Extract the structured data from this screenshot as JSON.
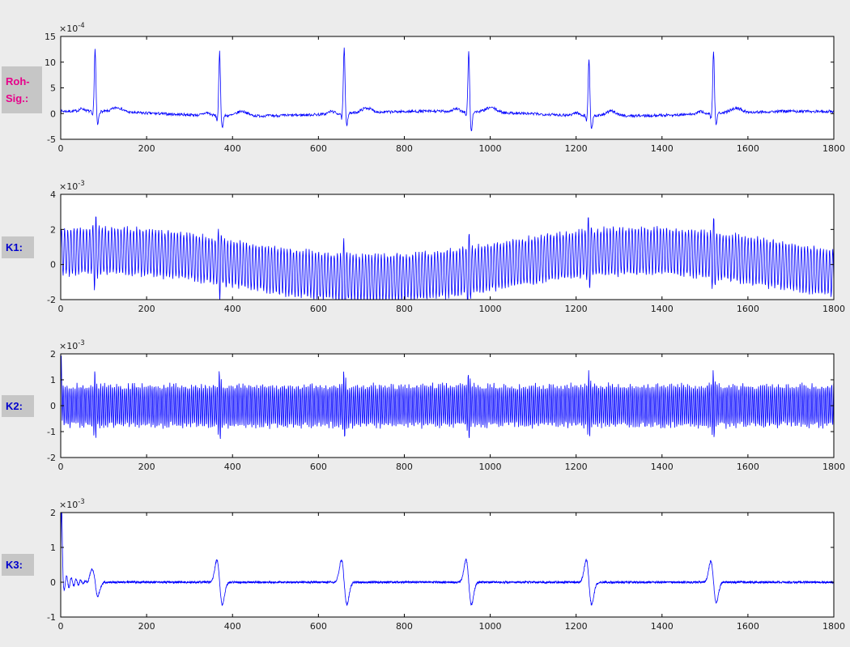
{
  "window": {
    "background": "#ececec",
    "axes_background": "#ffffff",
    "axis_color": "#000000",
    "tick_label_color": "#1a1a1a"
  },
  "signal_labels": [
    {
      "lines": [
        "Roh-",
        "Sig.:"
      ],
      "color": "#e7008a",
      "background": "#c6c6c6"
    },
    {
      "lines": [
        "K1:"
      ],
      "color": "#0000cd",
      "background": "#c6c6c6"
    },
    {
      "lines": [
        "K2:"
      ],
      "color": "#0000cd",
      "background": "#c6c6c6"
    },
    {
      "lines": [
        "K3:"
      ],
      "color": "#0000cd",
      "background": "#c6c6c6"
    }
  ],
  "chart_data": [
    {
      "type": "line",
      "name": "roh-signal",
      "description": "Raw ECG signal: baseline near 0 with 6 QRS spikes of amplitude ~12e-4",
      "line_color": "#0000ff",
      "exponent_prefix": "×10",
      "exponent_power": "-4",
      "unit_scale": 0.0001,
      "xlim": [
        0,
        1800
      ],
      "ylim": [
        -5,
        15
      ],
      "xticks": [
        0,
        200,
        400,
        600,
        800,
        1000,
        1200,
        1400,
        1600,
        1800
      ],
      "yticks": [
        -5,
        0,
        5,
        10,
        15
      ],
      "grid": false,
      "legend": null,
      "signal": {
        "kind": "ecg",
        "seed": 7,
        "step": 1,
        "beat_positions": [
          80,
          370,
          660,
          950,
          1230,
          1520
        ],
        "r_amplitudes": [
          12.1,
          12.4,
          12.7,
          11.6,
          11.2,
          12.3
        ],
        "s_amplitudes": [
          -2.6,
          -2.4,
          -2.2,
          -4.0,
          -2.6,
          -2.2
        ],
        "q_amplitude": -1.0,
        "p_amplitude": 0.5,
        "t_amplitude": 0.9,
        "baseline_amp": 0.45,
        "baseline_period": 860,
        "noise": 0.55
      }
    },
    {
      "type": "line",
      "name": "k1",
      "description": "Decomposition level K1: dense high-frequency band amplitude ~1.3e-3 riding a slow wave (center ±0.8e-3, period ~1250), spikes at QRS positions up to 3e-3",
      "line_color": "#0000ff",
      "exponent_prefix": "×10",
      "exponent_power": "-3",
      "unit_scale": 0.001,
      "xlim": [
        0,
        1800
      ],
      "ylim": [
        -2,
        4
      ],
      "xticks": [
        0,
        200,
        400,
        600,
        800,
        1000,
        1200,
        1400,
        1600,
        1800
      ],
      "yticks": [
        -2,
        0,
        2,
        4
      ],
      "grid": false,
      "legend": null,
      "signal": {
        "kind": "osc_mod",
        "seed": 11,
        "step": 0.8,
        "beat_positions": [
          80,
          370,
          660,
          950,
          1230,
          1520
        ],
        "center_amp": 0.78,
        "center_period": 1250,
        "center_phase": 1.06,
        "hf_amp": 1.32,
        "hf_period": 7.3,
        "amp_noise": 0.3,
        "beat_extra": 0.95,
        "beat_width": 4
      }
    },
    {
      "type": "line",
      "name": "k2",
      "description": "Decomposition level K2: uniform dense oscillation ±0.8e-3 with spikes to ±1.4e-3 at QRS positions and initial transient to 2e-3",
      "line_color": "#0000ff",
      "exponent_prefix": "×10",
      "exponent_power": "-3",
      "unit_scale": 0.001,
      "xlim": [
        0,
        1800
      ],
      "ylim": [
        -2,
        2
      ],
      "xticks": [
        0,
        200,
        400,
        600,
        800,
        1000,
        1200,
        1400,
        1600,
        1800
      ],
      "yticks": [
        -2,
        -1,
        0,
        1,
        2
      ],
      "grid": false,
      "legend": null,
      "signal": {
        "kind": "osc",
        "seed": 13,
        "step": 0.7,
        "beat_positions": [
          80,
          370,
          660,
          950,
          1230,
          1520
        ],
        "amp": 0.78,
        "period": 4.6,
        "amp_noise": 0.24,
        "beat_extra": 0.6,
        "beat_width": 3.5,
        "initial_amp": 1.3
      }
    },
    {
      "type": "line",
      "name": "k3",
      "description": "Decomposition level K3: near-zero baseline with biphasic wavelets ~±0.6e-3 at QRS positions and initial transient ~1.85e-3",
      "line_color": "#0000ff",
      "exponent_prefix": "×10",
      "exponent_power": "-3",
      "unit_scale": 0.001,
      "xlim": [
        0,
        1800
      ],
      "ylim": [
        -1,
        2
      ],
      "xticks": [
        0,
        200,
        400,
        600,
        800,
        1000,
        1200,
        1400,
        1600,
        1800
      ],
      "yticks": [
        -1,
        0,
        1,
        2
      ],
      "grid": false,
      "legend": null,
      "signal": {
        "kind": "wavelets",
        "seed": 17,
        "step": 0.5,
        "beat_positions": [
          80,
          370,
          660,
          950,
          1230,
          1520
        ],
        "wavelet_amps": [
          0.9,
          1.5,
          1.5,
          1.5,
          1.5,
          1.4
        ],
        "wavelet_width": 9,
        "noise": 0.06,
        "initial_amp": 1.85,
        "ring_amp": 0.3
      }
    }
  ]
}
